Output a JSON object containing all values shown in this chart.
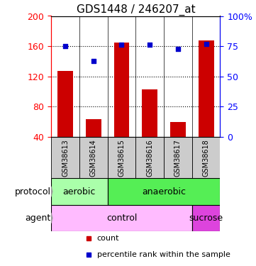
{
  "title": "GDS1448 / 246207_at",
  "samples": [
    "GSM38613",
    "GSM38614",
    "GSM38615",
    "GSM38616",
    "GSM38617",
    "GSM38618"
  ],
  "counts": [
    127,
    63,
    165,
    103,
    60,
    168
  ],
  "percentile_ranks": [
    75,
    63,
    76,
    76,
    73,
    77
  ],
  "ylim_left": [
    40,
    200
  ],
  "ylim_right": [
    0,
    100
  ],
  "yticks_left": [
    40,
    80,
    120,
    160,
    200
  ],
  "yticks_right": [
    0,
    25,
    50,
    75,
    100
  ],
  "ytick_labels_right": [
    "0",
    "25",
    "50",
    "75",
    "100%"
  ],
  "bar_color": "#cc0000",
  "dot_color": "#0000cc",
  "bar_bottom": 40,
  "color_aerobic": "#aaffaa",
  "color_anaerobic": "#55ee55",
  "color_control": "#ffbbff",
  "color_sucrose": "#dd44dd",
  "color_sample_bg": "#cccccc",
  "dotted_line_values": [
    80,
    120,
    160
  ],
  "title_fontsize": 11,
  "tick_fontsize": 9,
  "label_fontsize": 9,
  "arrow_color": "#999999"
}
